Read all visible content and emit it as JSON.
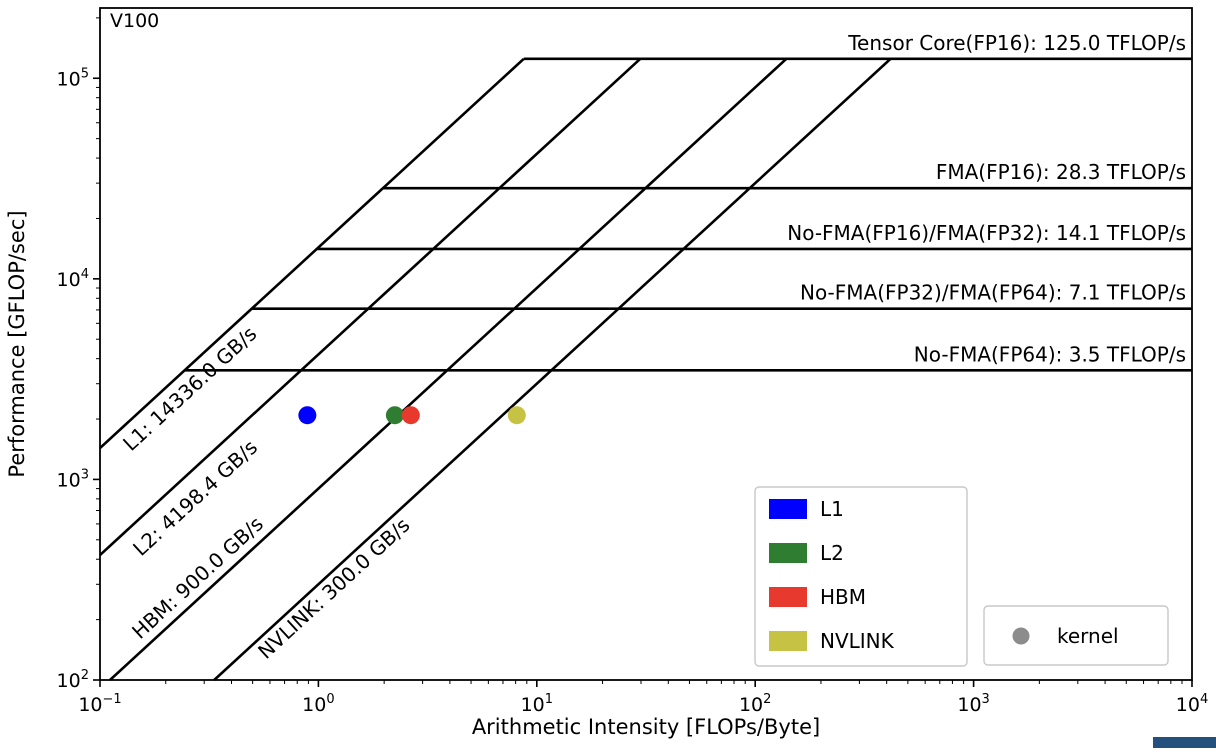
{
  "chart_data": {
    "type": "line",
    "chart_kind": "roofline",
    "title": "V100",
    "xlabel": "Arithmetic Intensity [FLOPs/Byte]",
    "ylabel": "Performance [GFLOP/sec]",
    "xscale": "log",
    "yscale": "log",
    "xlim": [
      0.1,
      10000
    ],
    "ylim": [
      100,
      224000
    ],
    "grid": false,
    "x_tick_exponents": [
      -1,
      0,
      1,
      2,
      3,
      4
    ],
    "y_tick_exponents": [
      2,
      3,
      4,
      5
    ],
    "x_tick_labels": [
      "10⁻¹",
      "10⁰",
      "10¹",
      "10²",
      "10³",
      "10⁴"
    ],
    "y_tick_labels": [
      "10²",
      "10³",
      "10⁴",
      "10⁵"
    ],
    "line_color": "#000000",
    "compute_ceilings": [
      {
        "name": "Tensor Core(FP16)",
        "tflops": 125.0,
        "gflops": 125000,
        "label": "Tensor Core(FP16): 125.0 TFLOP/s"
      },
      {
        "name": "FMA(FP16)",
        "tflops": 28.3,
        "gflops": 28300,
        "label": "FMA(FP16): 28.3 TFLOP/s"
      },
      {
        "name": "No-FMA(FP16)/FMA(FP32)",
        "tflops": 14.1,
        "gflops": 14100,
        "label": "No-FMA(FP16)/FMA(FP32): 14.1 TFLOP/s"
      },
      {
        "name": "No-FMA(FP32)/FMA(FP64)",
        "tflops": 7.1,
        "gflops": 7100,
        "label": "No-FMA(FP32)/FMA(FP64): 7.1 TFLOP/s"
      },
      {
        "name": "No-FMA(FP64)",
        "tflops": 3.5,
        "gflops": 3500,
        "label": "No-FMA(FP64): 3.5 TFLOP/s"
      }
    ],
    "memory_ceilings": [
      {
        "name": "L1",
        "gbs": 14336.0,
        "label": "L1: 14336.0 GB/s",
        "color": "#0000ff"
      },
      {
        "name": "L2",
        "gbs": 4198.4,
        "label": "L2: 4198.4 GB/s",
        "color": "#2f7d31"
      },
      {
        "name": "HBM",
        "gbs": 900.0,
        "label": "HBM: 900.0 GB/s",
        "color": "#e8392e"
      },
      {
        "name": "NVLINK",
        "gbs": 300.0,
        "label": "NVLINK: 300.0 GB/s",
        "color": "#c6c243"
      }
    ],
    "kernel_points": [
      {
        "series": "L1",
        "ai": 0.89,
        "gflops": 2090,
        "color": "#0000ff"
      },
      {
        "series": "L2",
        "ai": 2.24,
        "gflops": 2090,
        "color": "#2f7d31"
      },
      {
        "series": "HBM",
        "ai": 2.65,
        "gflops": 2090,
        "color": "#e8392e"
      },
      {
        "series": "NVLINK",
        "ai": 8.1,
        "gflops": 2090,
        "color": "#c6c243"
      }
    ],
    "legend": {
      "position": "lower right",
      "series_entries": [
        {
          "label": "L1",
          "color": "#0000ff"
        },
        {
          "label": "L2",
          "color": "#2f7d31"
        },
        {
          "label": "HBM",
          "color": "#e8392e"
        },
        {
          "label": "NVLINK",
          "color": "#c6c243"
        }
      ],
      "kernel_entry": {
        "label": "kernel",
        "color": "#8c8c8c"
      }
    }
  },
  "artifact": {
    "color": "#24507e"
  }
}
